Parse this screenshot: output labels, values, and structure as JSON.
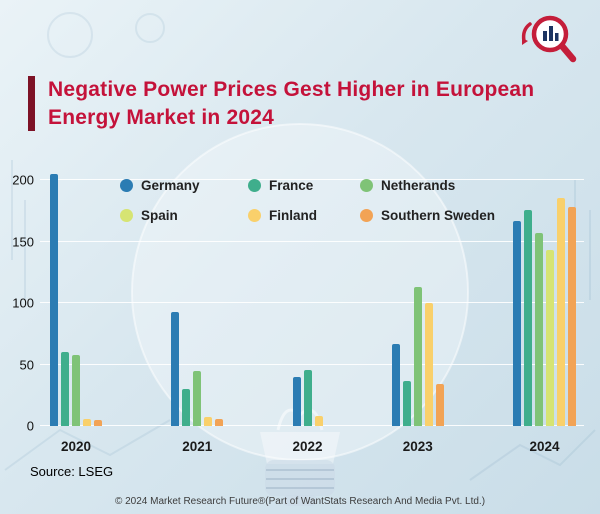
{
  "header": {
    "title_line1": "Negative Power Prices Gest Higher in European",
    "title_line2": "Energy Market in 2024"
  },
  "footer": {
    "source": "Source: LSEG",
    "copyright": "© 2024 Market Research Future®(Part of WantStats Research And Media Pvt. Ltd.)"
  },
  "logo": {
    "name": "market-research-future-logo"
  },
  "colors": {
    "title_red": "#c4123a",
    "accent_bar": "#7d1226",
    "background": "#d8e7ef",
    "gridline": "#ffffff"
  },
  "chart_data": {
    "type": "bar",
    "title": "Negative Power Prices Gest Higher in European Energy Market in 2024",
    "categories": [
      "2020",
      "2021",
      "2022",
      "2023",
      "2024"
    ],
    "series": [
      {
        "name": "Germany",
        "color": "#2b7cb3",
        "values": [
          205,
          93,
          40,
          67,
          167
        ]
      },
      {
        "name": "France",
        "color": "#3fae8c",
        "values": [
          60,
          30,
          46,
          37,
          176
        ]
      },
      {
        "name": "Netherands",
        "color": "#7fc377",
        "values": [
          58,
          45,
          null,
          113,
          157
        ]
      },
      {
        "name": "Spain",
        "color": "#d6e473",
        "values": [
          null,
          null,
          null,
          null,
          143
        ]
      },
      {
        "name": "Finland",
        "color": "#f9d06b",
        "values": [
          6,
          7,
          8,
          100,
          186
        ]
      },
      {
        "name": "Southern Sweden",
        "color": "#f2a355",
        "values": [
          5,
          6,
          null,
          34,
          178
        ]
      }
    ],
    "xlabel": "",
    "ylabel": "",
    "ylim": [
      0,
      210
    ],
    "yticks": [
      0,
      50,
      100,
      150,
      200
    ],
    "grid": true,
    "legend_position": "top-inside"
  }
}
